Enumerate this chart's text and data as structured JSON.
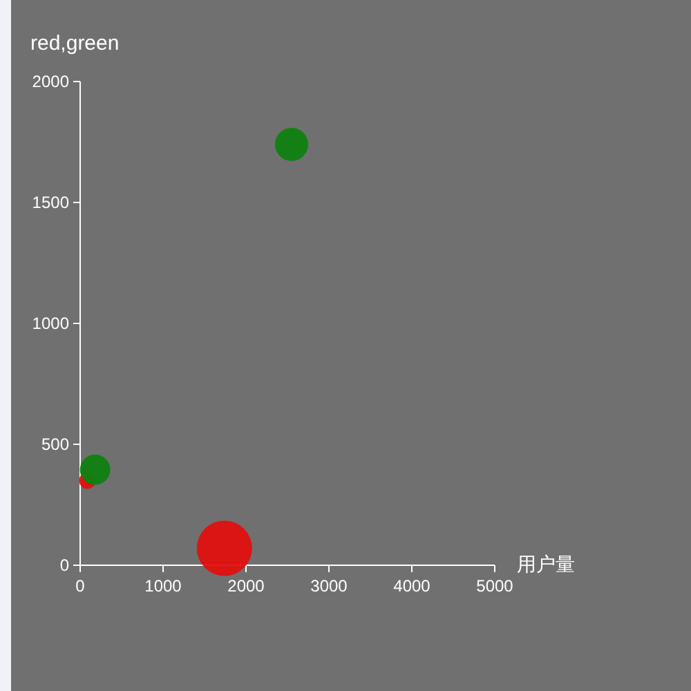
{
  "chart_data": {
    "type": "bubble",
    "title": "red,green",
    "xlabel": "用户量",
    "xlim": [
      0,
      5000
    ],
    "xticks": [
      0,
      1000,
      2000,
      3000,
      4000,
      5000
    ],
    "ylim": [
      0,
      2000
    ],
    "yticks": [
      0,
      500,
      1000,
      1500,
      2000
    ],
    "grid": false,
    "series": [
      {
        "color": "#e00f0f",
        "x": [
          88,
          1740
        ],
        "values": [
          350,
          70
        ],
        "sizes": [
          0.09,
          1
        ]
      },
      {
        "color": "#0f7f0f",
        "x": [
          2550,
          180
        ],
        "values": [
          1740,
          395
        ],
        "sizes": [
          0.36,
          0.3
        ]
      }
    ]
  }
}
